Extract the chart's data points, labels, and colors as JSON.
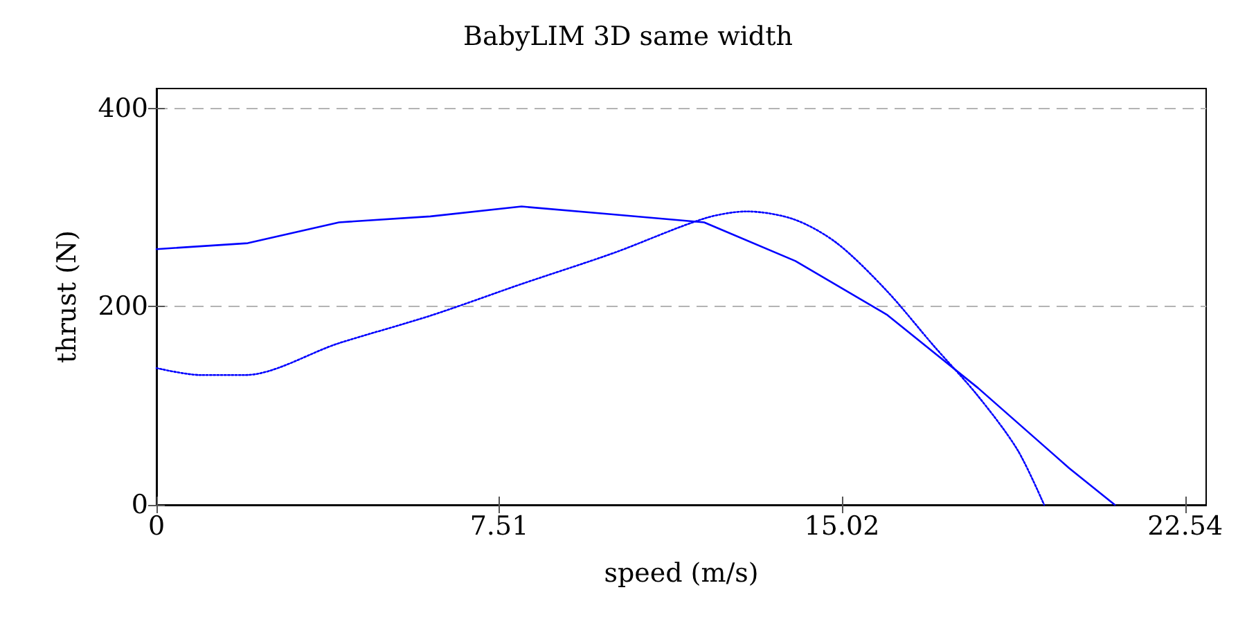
{
  "chart_data": {
    "type": "line",
    "title": "BabyLIM 3D same width",
    "xlabel": "speed (m/s)",
    "ylabel": "thrust (N)",
    "xlim": [
      0,
      23
    ],
    "xticks": [
      0,
      7.51,
      15.02,
      22.54
    ],
    "ylim": [
      0,
      420
    ],
    "yticks": [
      0,
      200,
      400
    ],
    "grid": "y",
    "marker": "none",
    "series": [
      {
        "color": "#0000ff",
        "line_style": "solid",
        "x": [
          0,
          2,
          4,
          6,
          8,
          10,
          12,
          14,
          16,
          18,
          20,
          21
        ],
        "values": [
          258,
          264,
          285,
          291,
          301,
          293,
          285,
          246,
          192,
          118,
          37,
          0
        ]
      },
      {
        "color": "#0000ff",
        "line_style": "dotted",
        "x": [
          0,
          0.96,
          1.94,
          3.99,
          6.01,
          8.01,
          10.01,
          12.01,
          12.94,
          13.97,
          14.91,
          16,
          17.04,
          17.98,
          18.86,
          19.45
        ],
        "values": [
          138,
          131,
          131,
          163,
          191,
          223,
          254,
          289,
          296,
          288,
          264,
          216,
          160,
          111,
          56,
          0
        ]
      }
    ]
  }
}
